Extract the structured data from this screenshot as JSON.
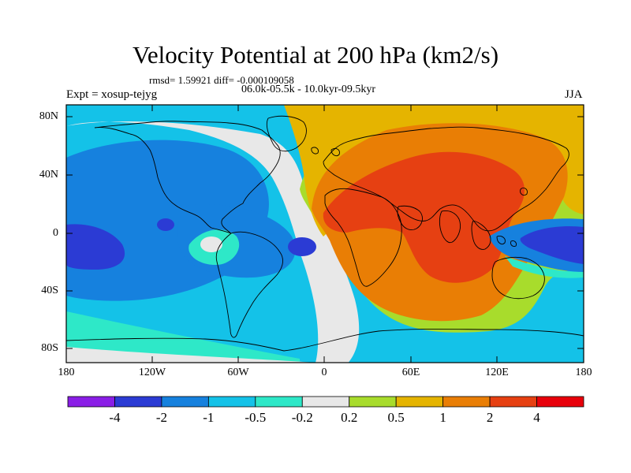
{
  "title": "Velocity Potential at 200 hPa (km2/s)",
  "stats": "rmsd= 1.59921 diff= -0.000109058",
  "experiment": "Expt = xosup-tejyg",
  "period": "06.0k-05.5k - 10.0kyr-09.5kyr",
  "season": "JJA",
  "map": {
    "projection": "cylindrical-equidistant",
    "lon_range": [
      -180,
      180
    ],
    "lat_range": [
      -90,
      90
    ],
    "lat_labels": [
      "80N",
      "40N",
      "0",
      "40S",
      "80S"
    ],
    "lon_labels": [
      "180",
      "120W",
      "60W",
      "0",
      "60E",
      "120E",
      "180"
    ]
  },
  "colorbar": {
    "labels": [
      "-4",
      "-2",
      "-1",
      "-0.5",
      "-0.2",
      "0.2",
      "0.5",
      "1",
      "2",
      "4"
    ],
    "colors": [
      "#8a1ee6",
      "#2b3bd4",
      "#1681de",
      "#14c2e8",
      "#2ee8c8",
      "#e8e8e8",
      "#a8dc2c",
      "#e5b400",
      "#e97e05",
      "#e64012",
      "#e8000b"
    ]
  },
  "colors": {
    "background": "#ffffff",
    "coastline": "#000000"
  }
}
